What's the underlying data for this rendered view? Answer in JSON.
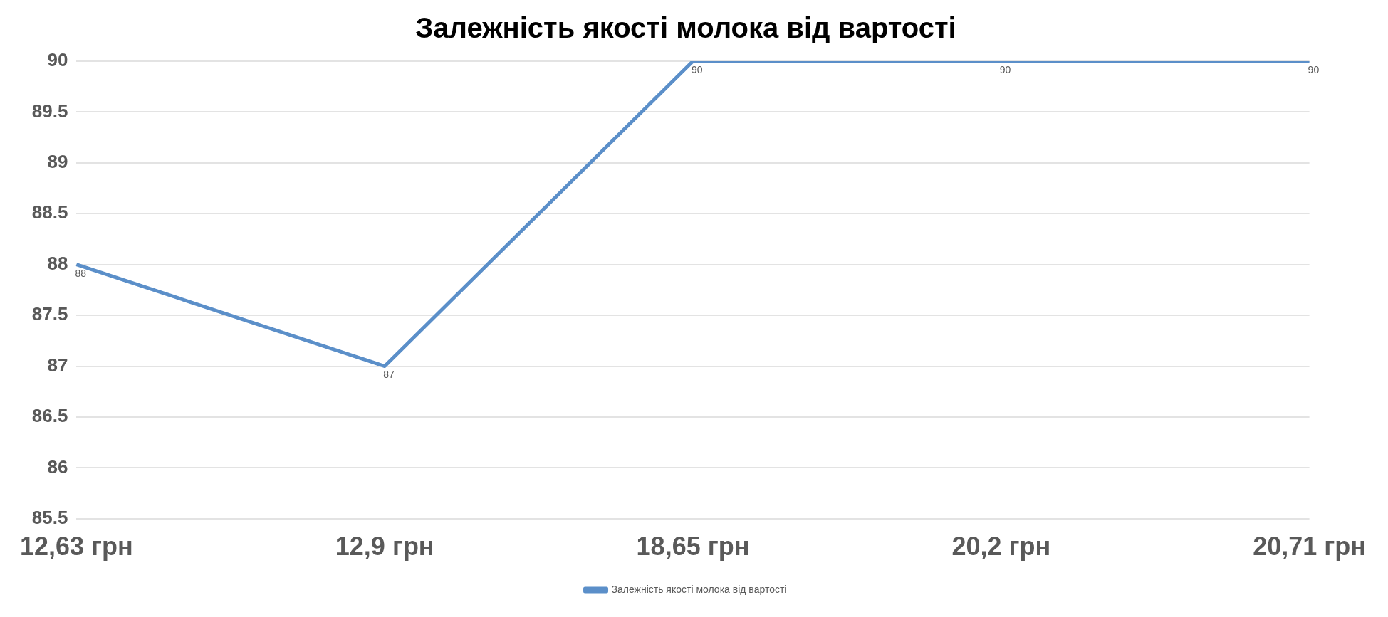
{
  "chart_data": {
    "type": "line",
    "title": "Залежність якості молока від вартості",
    "categories": [
      "12,63 грн",
      "12,9 грн",
      "18,65 грн",
      "20,2 грн",
      "20,71 грн"
    ],
    "series": [
      {
        "name": "Залежність якості молока від вартості",
        "color": "#5b8fc9",
        "values": [
          88,
          87,
          90,
          90,
          90
        ]
      }
    ],
    "ylim": [
      85.5,
      90
    ],
    "yticks": [
      85.5,
      86,
      86.5,
      87,
      87.5,
      88,
      88.5,
      89,
      89.5,
      90
    ],
    "grid": "y",
    "legend": "bottom",
    "data_labels": true,
    "marker": "none",
    "line_style": "solid"
  }
}
